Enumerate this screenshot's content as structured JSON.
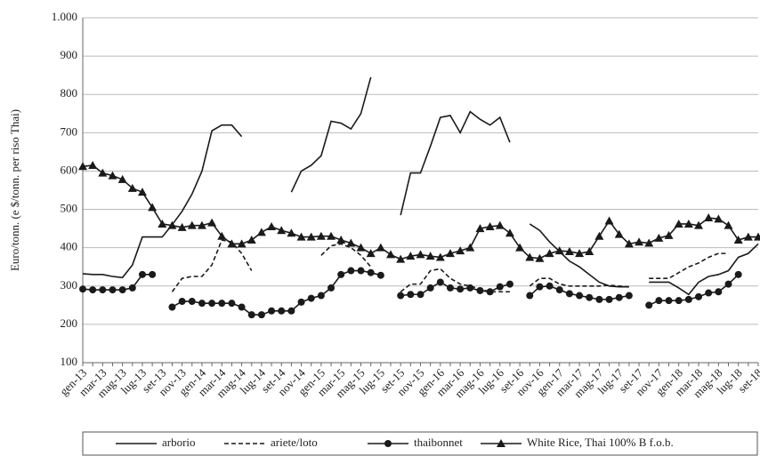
{
  "chart_data": {
    "type": "line",
    "y_label": "Euro/tonn. (e $/tonn. per riso Thai)",
    "categories": [
      "gen-13",
      null,
      "mar-13",
      null,
      "mag-13",
      null,
      "lug-13",
      null,
      "set-13",
      null,
      "nov-13",
      null,
      "gen-14",
      null,
      "mar-14",
      null,
      "mag-14",
      null,
      "lug-14",
      null,
      "set-14",
      null,
      "nov-14",
      null,
      "gen-15",
      null,
      "mar-15",
      null,
      "mag-15",
      null,
      "lug-15",
      null,
      "set-15",
      null,
      "nov-15",
      null,
      "gen-16",
      null,
      "mar-16",
      null,
      "mag-16",
      null,
      "lug-16",
      null,
      "set-16",
      null,
      "nov-16",
      null,
      "gen-17",
      null,
      "mar-17",
      null,
      "mag-17",
      null,
      "lug-17",
      null,
      "set-17",
      null,
      "nov-17",
      null,
      "gen-18",
      null,
      "mar-18",
      null,
      "mag-18",
      null,
      "lug-18",
      null,
      "set-18"
    ],
    "ylim": [
      100,
      1000
    ],
    "yticks": [
      100,
      200,
      300,
      400,
      500,
      600,
      700,
      800,
      900,
      {
        "value": 1000,
        "label": "1.000"
      }
    ],
    "grid": true,
    "legend": "bottom",
    "series": [
      {
        "name": "arborio",
        "color": "#1a1a1a",
        "line_style": "solid",
        "marker": "none",
        "values": [
          332,
          330,
          330,
          325,
          322,
          355,
          428,
          428,
          428,
          460,
          495,
          540,
          600,
          705,
          720,
          720,
          690,
          null,
          null,
          null,
          null,
          545,
          600,
          615,
          640,
          730,
          725,
          710,
          750,
          845,
          null,
          null,
          485,
          595,
          595,
          665,
          740,
          745,
          700,
          755,
          735,
          720,
          740,
          675,
          null,
          462,
          445,
          415,
          390,
          365,
          350,
          330,
          310,
          300,
          298,
          298,
          null,
          310,
          310,
          310,
          295,
          278,
          310,
          325,
          330,
          340,
          375,
          385,
          410
        ]
      },
      {
        "name": "ariete/loto",
        "color": "#1a1a1a",
        "line_style": "dashed",
        "marker": "none",
        "values": [
          null,
          null,
          null,
          null,
          null,
          null,
          null,
          null,
          null,
          285,
          320,
          325,
          325,
          355,
          420,
          415,
          385,
          340,
          null,
          null,
          null,
          null,
          null,
          null,
          380,
          405,
          410,
          400,
          380,
          350,
          null,
          null,
          285,
          305,
          305,
          340,
          345,
          320,
          305,
          300,
          292,
          285,
          285,
          285,
          null,
          300,
          320,
          320,
          305,
          300,
          300,
          300,
          300,
          302,
          300,
          298,
          null,
          320,
          320,
          320,
          335,
          350,
          360,
          375,
          385,
          385,
          null,
          null,
          null
        ]
      },
      {
        "name": "thaibonnet",
        "color": "#1a1a1a",
        "line_style": "solid",
        "marker": "circle",
        "values": [
          292,
          290,
          290,
          290,
          290,
          295,
          330,
          330,
          null,
          245,
          260,
          260,
          255,
          255,
          255,
          255,
          245,
          225,
          225,
          235,
          235,
          235,
          258,
          268,
          275,
          295,
          330,
          340,
          340,
          335,
          328,
          null,
          275,
          278,
          278,
          295,
          310,
          295,
          292,
          295,
          288,
          285,
          298,
          305,
          null,
          275,
          298,
          300,
          290,
          280,
          275,
          270,
          265,
          265,
          270,
          275,
          null,
          250,
          262,
          262,
          262,
          265,
          272,
          282,
          285,
          305,
          330,
          null,
          null
        ]
      },
      {
        "name": "White Rice, Thai 100% B f.o.b.",
        "color": "#1a1a1a",
        "line_style": "solid",
        "marker": "triangle",
        "values": [
          612,
          615,
          595,
          588,
          578,
          555,
          545,
          505,
          462,
          458,
          453,
          458,
          458,
          465,
          430,
          410,
          410,
          420,
          440,
          455,
          445,
          438,
          428,
          428,
          430,
          430,
          420,
          412,
          400,
          385,
          400,
          382,
          370,
          378,
          382,
          378,
          375,
          385,
          392,
          400,
          450,
          455,
          458,
          438,
          400,
          375,
          372,
          385,
          392,
          390,
          385,
          390,
          430,
          470,
          435,
          410,
          415,
          412,
          425,
          432,
          462,
          462,
          458,
          478,
          475,
          458,
          420,
          428,
          428
        ]
      }
    ]
  }
}
